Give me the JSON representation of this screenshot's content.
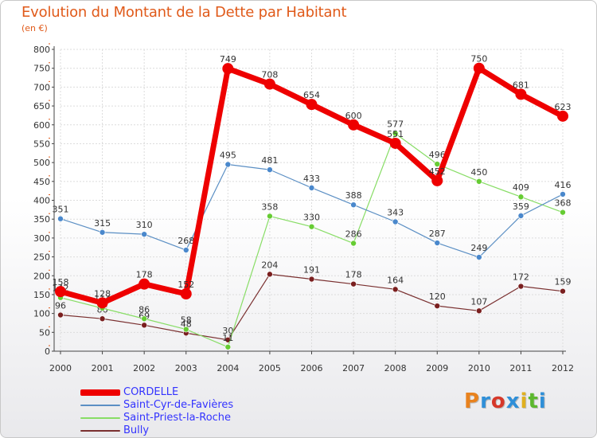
{
  "header": {
    "title": "Evolution du Montant de la Dette par Habitant",
    "subtitle": "(en €)"
  },
  "logo": {
    "text": "Proxiti",
    "letters": [
      {
        "ch": "P",
        "color": "#e8821e"
      },
      {
        "ch": "r",
        "color": "#2f8fd8"
      },
      {
        "ch": "o",
        "color": "#d6382a"
      },
      {
        "ch": "x",
        "color": "#2f8fd8"
      },
      {
        "ch": "i",
        "color": "#e0b020"
      },
      {
        "ch": "t",
        "color": "#5cb82e"
      },
      {
        "ch": "i",
        "color": "#2f8fd8"
      }
    ]
  },
  "chart_data": {
    "type": "line",
    "title": "Evolution du Montant de la Dette par Habitant",
    "subtitle": "(en €)",
    "xlabel": "",
    "ylabel": "",
    "x": [
      "2000",
      "2001",
      "2002",
      "2003",
      "2004",
      "2005",
      "2006",
      "2007",
      "2008",
      "2009",
      "2010",
      "2011",
      "2012"
    ],
    "ylim": [
      0,
      800
    ],
    "yticks": [
      0,
      50,
      100,
      150,
      200,
      250,
      300,
      350,
      400,
      450,
      500,
      550,
      600,
      650,
      700,
      750,
      800
    ],
    "grid": true,
    "legend_position": "bottom-left",
    "series": [
      {
        "name": "CORDELLE",
        "color": "#ee0000",
        "width": 7,
        "marker": 7,
        "values": [
          158,
          128,
          178,
          152,
          749,
          708,
          654,
          600,
          551,
          452,
          750,
          681,
          623
        ],
        "labels": [
          "158",
          "128",
          "178",
          "152",
          "749",
          "708",
          "654",
          "600",
          "551",
          "452",
          "750",
          "681",
          "623"
        ]
      },
      {
        "name": "Saint-Cyr-de-Favières",
        "color": "#5b8fc4",
        "width": 1.2,
        "marker": 3.5,
        "markerFill": "#4a88cc",
        "values": [
          351,
          315,
          310,
          268,
          495,
          481,
          433,
          388,
          343,
          287,
          249,
          359,
          416
        ],
        "labels": [
          "351",
          "315",
          "310",
          "268",
          "495",
          "481",
          "433",
          "388",
          "343",
          "287",
          "249",
          "359",
          "416"
        ]
      },
      {
        "name": "Saint-Priest-la-Roche",
        "color": "#88dd66",
        "width": 1.2,
        "marker": 3.5,
        "markerFill": "#66cc33",
        "values": [
          142,
          114,
          86,
          58,
          11,
          358,
          330,
          286,
          577,
          496,
          450,
          409,
          368
        ],
        "labels": [
          "142",
          "114",
          "86",
          "58",
          "11",
          "358",
          "330",
          "286",
          "577",
          "496",
          "450",
          "409",
          "368"
        ]
      },
      {
        "name": "Bully",
        "color": "#7a3030",
        "width": 1.2,
        "marker": 3.5,
        "markerFill": "#7a1f1f",
        "values": [
          96,
          86,
          69,
          48,
          30,
          204,
          191,
          178,
          164,
          120,
          107,
          172,
          159
        ],
        "labels": [
          "96",
          "86",
          "69",
          "48",
          "30",
          "204",
          "191",
          "178",
          "164",
          "120",
          "107",
          "172",
          "159"
        ]
      }
    ]
  }
}
